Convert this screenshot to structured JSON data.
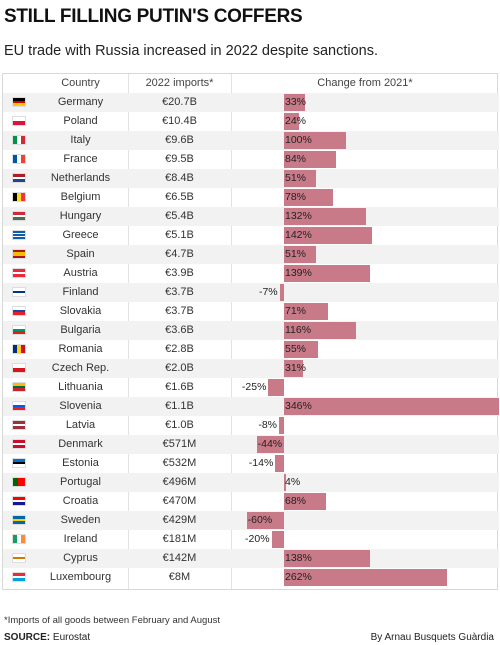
{
  "title": "STILL FILLING PUTIN'S COFFERS",
  "subtitle": "EU trade with Russia increased in 2022 despite sanctions.",
  "colors": {
    "bar": "#c97a88",
    "row_alt": "#f2f2f2"
  },
  "chart_data": {
    "type": "table",
    "columns": [
      "Country",
      "2022 imports*",
      "Change from 2021*"
    ],
    "rows": [
      {
        "country": "Germany",
        "imports": "€20.7B",
        "change": 33,
        "change_label": "33%",
        "flag": [
          "#000000",
          "#dd0000",
          "#ffce00"
        ],
        "flag_dir": "h"
      },
      {
        "country": "Poland",
        "imports": "€10.4B",
        "change": 24,
        "change_label": "24%",
        "flag": [
          "#ffffff",
          "#dc143c"
        ],
        "flag_dir": "h"
      },
      {
        "country": "Italy",
        "imports": "€9.6B",
        "change": 100,
        "change_label": "100%",
        "flag": [
          "#009246",
          "#ffffff",
          "#ce2b37"
        ],
        "flag_dir": "v"
      },
      {
        "country": "France",
        "imports": "€9.5B",
        "change": 84,
        "change_label": "84%",
        "flag": [
          "#0055a4",
          "#ffffff",
          "#ef4135"
        ],
        "flag_dir": "v"
      },
      {
        "country": "Netherlands",
        "imports": "€8.4B",
        "change": 51,
        "change_label": "51%",
        "flag": [
          "#ae1c28",
          "#ffffff",
          "#21468b"
        ],
        "flag_dir": "h"
      },
      {
        "country": "Belgium",
        "imports": "€6.5B",
        "change": 78,
        "change_label": "78%",
        "flag": [
          "#000000",
          "#fdda24",
          "#ef3340"
        ],
        "flag_dir": "v"
      },
      {
        "country": "Hungary",
        "imports": "€5.4B",
        "change": 132,
        "change_label": "132%",
        "flag": [
          "#ce2939",
          "#ffffff",
          "#477050"
        ],
        "flag_dir": "h"
      },
      {
        "country": "Greece",
        "imports": "€5.1B",
        "change": 142,
        "change_label": "142%",
        "flag": [
          "#0d5eaf",
          "#ffffff",
          "#0d5eaf",
          "#ffffff",
          "#0d5eaf"
        ],
        "flag_dir": "h"
      },
      {
        "country": "Spain",
        "imports": "€4.7B",
        "change": 51,
        "change_label": "51%",
        "flag": [
          "#aa151b",
          "#f1bf00",
          "#f1bf00",
          "#aa151b"
        ],
        "flag_dir": "h"
      },
      {
        "country": "Austria",
        "imports": "€3.9B",
        "change": 139,
        "change_label": "139%",
        "flag": [
          "#ed2939",
          "#ffffff",
          "#ed2939"
        ],
        "flag_dir": "h"
      },
      {
        "country": "Finland",
        "imports": "€3.7B",
        "change": -7,
        "change_label": "-7%",
        "flag": [
          "#ffffff",
          "#003580",
          "#ffffff"
        ],
        "flag_dir": "h"
      },
      {
        "country": "Slovakia",
        "imports": "€3.7B",
        "change": 71,
        "change_label": "71%",
        "flag": [
          "#ffffff",
          "#0b4ea2",
          "#ee1c25"
        ],
        "flag_dir": "h"
      },
      {
        "country": "Bulgaria",
        "imports": "€3.6B",
        "change": 116,
        "change_label": "116%",
        "flag": [
          "#ffffff",
          "#00966e",
          "#d62612"
        ],
        "flag_dir": "h"
      },
      {
        "country": "Romania",
        "imports": "€2.8B",
        "change": 55,
        "change_label": "55%",
        "flag": [
          "#002b7f",
          "#fcd116",
          "#ce1126"
        ],
        "flag_dir": "v"
      },
      {
        "country": "Czech Rep.",
        "imports": "€2.0B",
        "change": 31,
        "change_label": "31%",
        "flag": [
          "#ffffff",
          "#d7141a"
        ],
        "flag_dir": "h"
      },
      {
        "country": "Lithuania",
        "imports": "€1.6B",
        "change": -25,
        "change_label": "-25%",
        "flag": [
          "#fdb913",
          "#006a44",
          "#c1272d"
        ],
        "flag_dir": "h"
      },
      {
        "country": "Slovenia",
        "imports": "€1.1B",
        "change": 346,
        "change_label": "346%",
        "flag": [
          "#ffffff",
          "#005ce5",
          "#ed1c24"
        ],
        "flag_dir": "h"
      },
      {
        "country": "Latvia",
        "imports": "€1.0B",
        "change": -8,
        "change_label": "-8%",
        "flag": [
          "#9e3039",
          "#9e3039",
          "#ffffff",
          "#9e3039",
          "#9e3039"
        ],
        "flag_dir": "h"
      },
      {
        "country": "Denmark",
        "imports": "€571M",
        "change": -44,
        "change_label": "-44%",
        "flag": [
          "#c8102e",
          "#ffffff",
          "#c8102e"
        ],
        "flag_dir": "h"
      },
      {
        "country": "Estonia",
        "imports": "€532M",
        "change": -14,
        "change_label": "-14%",
        "flag": [
          "#0072ce",
          "#000000",
          "#ffffff"
        ],
        "flag_dir": "h"
      },
      {
        "country": "Portugal",
        "imports": "€496M",
        "change": 4,
        "change_label": "4%",
        "flag": [
          "#006600",
          "#006600",
          "#ff0000",
          "#ff0000",
          "#ff0000"
        ],
        "flag_dir": "v"
      },
      {
        "country": "Croatia",
        "imports": "€470M",
        "change": 68,
        "change_label": "68%",
        "flag": [
          "#ff0000",
          "#ffffff",
          "#171796"
        ],
        "flag_dir": "h"
      },
      {
        "country": "Sweden",
        "imports": "€429M",
        "change": -60,
        "change_label": "-60%",
        "flag": [
          "#006aa7",
          "#fecc00",
          "#006aa7"
        ],
        "flag_dir": "h"
      },
      {
        "country": "Ireland",
        "imports": "€181M",
        "change": -20,
        "change_label": "-20%",
        "flag": [
          "#169b62",
          "#ffffff",
          "#ff883e"
        ],
        "flag_dir": "v"
      },
      {
        "country": "Cyprus",
        "imports": "€142M",
        "change": 138,
        "change_label": "138%",
        "flag": [
          "#ffffff",
          "#d57800",
          "#ffffff"
        ],
        "flag_dir": "h"
      },
      {
        "country": "Luxembourg",
        "imports": "€8M",
        "change": 262,
        "change_label": "262%",
        "flag": [
          "#ed2939",
          "#ffffff",
          "#00a1de"
        ],
        "flag_dir": "h"
      }
    ]
  },
  "footnote": "*Imports of all goods between February and August",
  "source_label": "SOURCE:",
  "source_value": "Eurostat",
  "credit": "By Arnau Busquets Guàrdia"
}
